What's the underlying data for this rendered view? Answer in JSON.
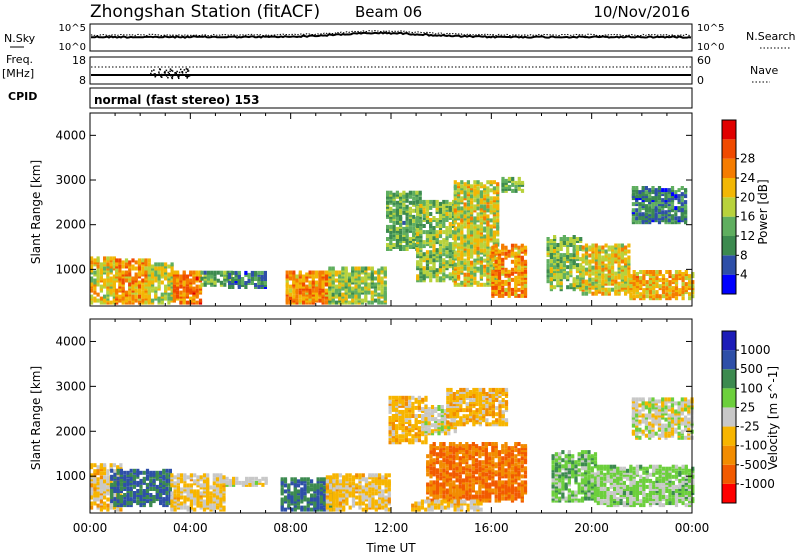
{
  "header": {
    "station": "Zhongshan Station (fitACF)",
    "beam": "Beam 06",
    "date": "10/Nov/2016"
  },
  "top_panels": {
    "nsky_label": "N.Sky",
    "nsky_ticks": [
      "10^5",
      "10^0"
    ],
    "nsearch_label": "N.Search",
    "nsearch_ticks": [
      "10^5",
      "10^0"
    ],
    "freq_label": "Freq.",
    "freq_unit": "[MHz]",
    "freq_ticks": [
      "18",
      "8"
    ],
    "nave_label": "Nave",
    "nave_ticks": [
      "60",
      "0"
    ],
    "cpid_label": "CPID",
    "cpid_text": "normal (fast stereo) 153"
  },
  "colors": {
    "power_scale": [
      "#0000ff",
      "#2e4fa8",
      "#3c8a4f",
      "#5fae5f",
      "#b8d23c",
      "#f2b705",
      "#f57c00",
      "#f04a00",
      "#e00000"
    ],
    "velocity_scale": [
      "#ff0000",
      "#f25a00",
      "#f28c00",
      "#f7b500",
      "#c8c8c8",
      "#6ccf3c",
      "#3c8a4f",
      "#2e4fa8",
      "#1c1cb8"
    ]
  },
  "chart_data": [
    {
      "type": "heatmap",
      "quantity": "Power",
      "ylabel": "Slant Range [km]",
      "ylim": [
        180,
        4500
      ],
      "yticks": [
        "1000",
        "2000",
        "3000",
        "4000"
      ],
      "colorbar_label": "Power [dB]",
      "colorbar_ticks": [
        "4",
        "8",
        "12",
        "16",
        "20",
        "24",
        "28"
      ],
      "clim": [
        0,
        32
      ],
      "regions": [
        {
          "t": [
            0.0,
            1.0
          ],
          "r": [
            300,
            1300
          ],
          "v": 18
        },
        {
          "t": [
            1.0,
            2.3
          ],
          "r": [
            300,
            1250
          ],
          "v": 22
        },
        {
          "t": [
            2.3,
            3.3
          ],
          "r": [
            300,
            1200
          ],
          "v": 16
        },
        {
          "t": [
            3.3,
            4.4
          ],
          "r": [
            300,
            1000
          ],
          "v": 24
        },
        {
          "t": [
            4.4,
            5.6
          ],
          "r": [
            700,
            1000
          ],
          "v": 12
        },
        {
          "t": [
            5.5,
            7.0
          ],
          "r": [
            650,
            1000
          ],
          "v": 8
        },
        {
          "t": [
            7.8,
            9.5
          ],
          "r": [
            300,
            1000
          ],
          "v": 22
        },
        {
          "t": [
            9.5,
            11.8
          ],
          "r": [
            300,
            1100
          ],
          "v": 15
        },
        {
          "t": [
            11.8,
            13.2
          ],
          "r": [
            1500,
            2800
          ],
          "v": 12
        },
        {
          "t": [
            13.0,
            14.5
          ],
          "r": [
            800,
            2600
          ],
          "v": 14
        },
        {
          "t": [
            14.5,
            16.2
          ],
          "r": [
            700,
            3000
          ],
          "v": 17
        },
        {
          "t": [
            16.0,
            17.4
          ],
          "r": [
            450,
            1600
          ],
          "v": 22
        },
        {
          "t": [
            16.4,
            17.2
          ],
          "r": [
            2800,
            3100
          ],
          "v": 12
        },
        {
          "t": [
            18.2,
            19.6
          ],
          "r": [
            600,
            1800
          ],
          "v": 14
        },
        {
          "t": [
            19.6,
            21.5
          ],
          "r": [
            500,
            1600
          ],
          "v": 18
        },
        {
          "t": [
            21.5,
            24.0
          ],
          "r": [
            400,
            1000
          ],
          "v": 20
        },
        {
          "t": [
            21.6,
            23.8
          ],
          "r": [
            2100,
            2900
          ],
          "v": 8
        }
      ]
    },
    {
      "type": "heatmap",
      "quantity": "Velocity",
      "ylabel": "Slant Range [km]",
      "ylim": [
        180,
        4500
      ],
      "yticks": [
        "1000",
        "2000",
        "3000",
        "4000"
      ],
      "colorbar_label": "Velocity [m s^-1]",
      "colorbar_ticks": [
        "1000",
        "500",
        "100",
        "25",
        "-25",
        "-100",
        "-500",
        "-1000"
      ],
      "clim": [
        -1250,
        1250
      ],
      "x_ticks": [
        "00:00",
        "04:00",
        "08:00",
        "12:00",
        "16:00",
        "20:00",
        "00:00"
      ],
      "xlabel": "Time UT",
      "xlim": [
        0,
        24
      ],
      "regions": [
        {
          "t": [
            0.0,
            1.2
          ],
          "r": [
            300,
            1300
          ],
          "v": -200
        },
        {
          "t": [
            0.8,
            3.2
          ],
          "r": [
            400,
            1200
          ],
          "v": 700
        },
        {
          "t": [
            3.2,
            5.4
          ],
          "r": [
            300,
            1100
          ],
          "v": -180
        },
        {
          "t": [
            5.4,
            7.0
          ],
          "r": [
            850,
            1000
          ],
          "v": 0
        },
        {
          "t": [
            7.6,
            9.6
          ],
          "r": [
            300,
            1000
          ],
          "v": 700
        },
        {
          "t": [
            9.4,
            12.0
          ],
          "r": [
            300,
            1100
          ],
          "v": -200
        },
        {
          "t": [
            11.9,
            13.4
          ],
          "r": [
            1800,
            2800
          ],
          "v": -300
        },
        {
          "t": [
            13.2,
            14.6
          ],
          "r": [
            2000,
            2600
          ],
          "v": 0
        },
        {
          "t": [
            14.2,
            16.6
          ],
          "r": [
            2200,
            3000
          ],
          "v": -300
        },
        {
          "t": [
            13.4,
            17.4
          ],
          "r": [
            500,
            1800
          ],
          "v": -700
        },
        {
          "t": [
            12.8,
            15.6
          ],
          "r": [
            300,
            500
          ],
          "v": -200
        },
        {
          "t": [
            18.4,
            20.2
          ],
          "r": [
            500,
            1600
          ],
          "v": 300
        },
        {
          "t": [
            20.2,
            24.0
          ],
          "r": [
            400,
            1300
          ],
          "v": 200
        },
        {
          "t": [
            21.6,
            24.0
          ],
          "r": [
            1900,
            2800
          ],
          "v": 0
        }
      ]
    }
  ]
}
